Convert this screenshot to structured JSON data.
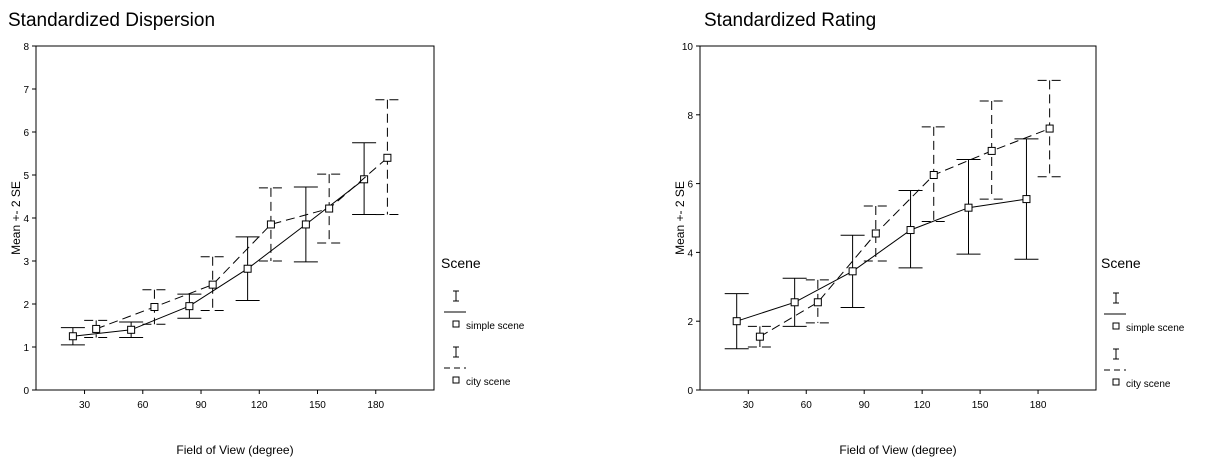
{
  "chart_data": [
    {
      "type": "line",
      "title": "Standardized Dispersion",
      "xlabel": "Field of View (degree)",
      "ylabel": "Mean +- 2 SE",
      "xticks": [
        30,
        60,
        90,
        120,
        150,
        180
      ],
      "yticks": [
        0,
        1,
        2,
        3,
        4,
        5,
        6,
        7,
        8
      ],
      "xlim": [
        5,
        210
      ],
      "ylim": [
        0,
        8
      ],
      "legend": {
        "title": "Scene",
        "entries": [
          "simple scene",
          "city scene"
        ],
        "placement": "right"
      },
      "series": [
        {
          "name": "simple scene",
          "style": "solid",
          "x": [
            24,
            54,
            84,
            114,
            144,
            174
          ],
          "y": [
            1.25,
            1.4,
            1.95,
            2.82,
            3.85,
            4.9
          ],
          "lower": [
            1.05,
            1.22,
            1.67,
            2.08,
            2.98,
            4.08
          ],
          "upper": [
            1.45,
            1.58,
            2.23,
            3.56,
            4.72,
            5.75
          ]
        },
        {
          "name": "city scene",
          "style": "dashed",
          "x": [
            36,
            66,
            96,
            126,
            156,
            186
          ],
          "y": [
            1.42,
            1.93,
            2.45,
            3.85,
            4.22,
            5.4
          ],
          "lower": [
            1.22,
            1.53,
            1.85,
            3.0,
            3.42,
            4.08
          ],
          "upper": [
            1.62,
            2.33,
            3.1,
            4.7,
            5.02,
            6.75
          ]
        }
      ]
    },
    {
      "type": "line",
      "title": "Standardized Rating",
      "xlabel": "Field of View (degree)",
      "ylabel": "Mean +- 2 SE",
      "xticks": [
        30,
        60,
        90,
        120,
        150,
        180
      ],
      "yticks": [
        0,
        2,
        4,
        6,
        8,
        10
      ],
      "xlim": [
        5,
        210
      ],
      "ylim": [
        0,
        10
      ],
      "legend": {
        "title": "Scene",
        "entries": [
          "simple scene",
          "city scene"
        ],
        "placement": "right"
      },
      "series": [
        {
          "name": "simple scene",
          "style": "solid",
          "x": [
            24,
            54,
            84,
            114,
            144,
            174
          ],
          "y": [
            2.0,
            2.55,
            3.45,
            4.65,
            5.3,
            5.55
          ],
          "lower": [
            1.2,
            1.85,
            2.4,
            3.55,
            3.95,
            3.8
          ],
          "upper": [
            2.8,
            3.25,
            4.5,
            5.8,
            6.7,
            7.3
          ]
        },
        {
          "name": "city scene",
          "style": "dashed",
          "x": [
            36,
            66,
            96,
            126,
            156,
            186
          ],
          "y": [
            1.55,
            2.55,
            4.55,
            6.25,
            6.95,
            7.6
          ],
          "lower": [
            1.25,
            1.95,
            3.75,
            4.9,
            5.55,
            6.2
          ],
          "upper": [
            1.85,
            3.2,
            5.35,
            7.65,
            8.4,
            9.0
          ]
        }
      ]
    }
  ]
}
